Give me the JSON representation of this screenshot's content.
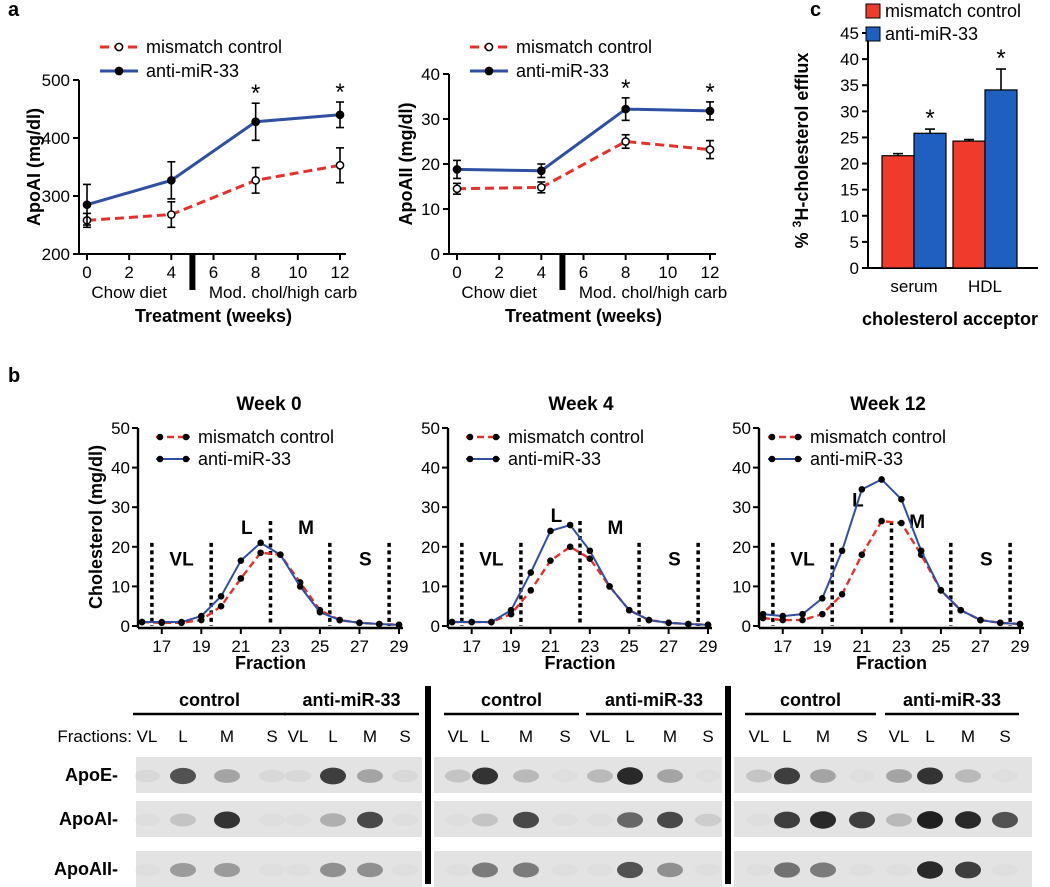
{
  "panel_labels": {
    "a": "a",
    "b": "b",
    "c": "c"
  },
  "colors": {
    "control": "#e8302a",
    "treated": "#2e4fa3",
    "bar_control": "#ef3b2c",
    "bar_treated": "#1f5fbf"
  },
  "chart_data": [
    {
      "id": "a-left",
      "type": "line",
      "ylabel": "ApoAI (mg/dl)",
      "xlabel": "Treatment (weeks)",
      "x": [
        0,
        4,
        8,
        12
      ],
      "xticks": [
        0,
        2,
        4,
        6,
        8,
        10,
        12
      ],
      "xlim": [
        0,
        12
      ],
      "ylim": [
        200,
        500
      ],
      "yticks": [
        200,
        300,
        400,
        500
      ],
      "diet_labels": [
        "Chow diet",
        "Mod. chol/high carb"
      ],
      "series": [
        {
          "name": "mismatch control",
          "style": "dashed-open",
          "values": [
            258,
            268,
            327,
            353
          ],
          "errors": [
            12,
            22,
            22,
            30
          ]
        },
        {
          "name": "anti-miR-33",
          "style": "solid-filled",
          "values": [
            285,
            327,
            428,
            440
          ],
          "errors": [
            35,
            32,
            32,
            22
          ]
        }
      ],
      "significance": [
        {
          "x": 8,
          "label": "*"
        },
        {
          "x": 12,
          "label": "*"
        }
      ]
    },
    {
      "id": "a-right",
      "type": "line",
      "ylabel": "ApoAII (mg/dl)",
      "xlabel": "Treatment (weeks)",
      "x": [
        0,
        4,
        8,
        12
      ],
      "xticks": [
        0,
        2,
        4,
        6,
        8,
        10,
        12
      ],
      "xlim": [
        0,
        12
      ],
      "ylim": [
        0,
        40
      ],
      "yticks": [
        0,
        10,
        20,
        30,
        40
      ],
      "diet_labels": [
        "Chow diet",
        "Mod. chol/high carb"
      ],
      "series": [
        {
          "name": "mismatch control",
          "style": "dashed-open",
          "values": [
            14.5,
            14.8,
            25,
            23.2
          ],
          "errors": [
            1.2,
            1.2,
            1.5,
            2
          ]
        },
        {
          "name": "anti-miR-33",
          "style": "solid-filled",
          "values": [
            18.8,
            18.5,
            32.2,
            31.8
          ],
          "errors": [
            2,
            1.5,
            2.5,
            2
          ]
        }
      ],
      "significance": [
        {
          "x": 8,
          "label": "*"
        },
        {
          "x": 12,
          "label": "*"
        }
      ]
    },
    {
      "id": "c",
      "type": "bar",
      "ylabel": "% 3H-cholesterol efflux",
      "ylabel_sup": "3",
      "ylabel_pre": "% ",
      "ylabel_post": "H-cholesterol efflux",
      "xlabel": "cholesterol acceptor",
      "categories": [
        "serum",
        "HDL"
      ],
      "ylim": [
        0,
        45
      ],
      "yticks": [
        0,
        5,
        10,
        15,
        20,
        25,
        30,
        35,
        40,
        45
      ],
      "series": [
        {
          "name": "mismatch control",
          "values": [
            21.5,
            24.3
          ],
          "errors": [
            0.4,
            0.3
          ]
        },
        {
          "name": "anti-miR-33",
          "values": [
            25.8,
            34.1
          ],
          "errors": [
            0.8,
            4
          ]
        }
      ],
      "significance": [
        {
          "category": "serum",
          "label": "*"
        },
        {
          "category": "HDL",
          "label": "*"
        }
      ]
    },
    {
      "id": "b-week0",
      "type": "line",
      "title": "Week 0",
      "ylabel": "Cholesterol (mg/dl)",
      "xlabel": "Fraction",
      "xlim": [
        16,
        29
      ],
      "xticks": [
        17,
        19,
        21,
        23,
        25,
        27,
        29
      ],
      "ylim": [
        0,
        50
      ],
      "yticks": [
        0,
        10,
        20,
        30,
        40,
        50
      ],
      "x": [
        16,
        17,
        18,
        19,
        20,
        21,
        22,
        23,
        24,
        25,
        26,
        27,
        28,
        29
      ],
      "series": [
        {
          "name": "mismatch control",
          "values": [
            1,
            0.8,
            0.8,
            1.5,
            5,
            12,
            18.5,
            18,
            11,
            4,
            1.5,
            0.8,
            0.5,
            0.3
          ]
        },
        {
          "name": "anti-miR-33",
          "values": [
            1,
            1,
            1,
            2.5,
            7.5,
            16.5,
            21,
            18,
            10,
            3.5,
            1.5,
            0.8,
            0.5,
            0.3
          ]
        }
      ],
      "regions": [
        {
          "label": "VL",
          "label_x": 18,
          "label_y": 17
        },
        {
          "label": "L",
          "label_x": 21.3,
          "label_y": 25
        },
        {
          "label": "M",
          "label_x": 24.3,
          "label_y": 25
        },
        {
          "label": "S",
          "label_x": 27.3,
          "label_y": 17
        }
      ],
      "region_boundaries": [
        16.5,
        19.5,
        22.5,
        25.5,
        28.5
      ]
    },
    {
      "id": "b-week4",
      "type": "line",
      "title": "Week 4",
      "ylabel": "",
      "xlabel": "Fraction",
      "xlim": [
        16,
        29
      ],
      "xticks": [
        17,
        19,
        21,
        23,
        25,
        27,
        29
      ],
      "ylim": [
        0,
        50
      ],
      "yticks": [
        0,
        10,
        20,
        30,
        40,
        50
      ],
      "x": [
        16,
        17,
        18,
        19,
        20,
        21,
        22,
        23,
        24,
        25,
        26,
        27,
        28,
        29
      ],
      "series": [
        {
          "name": "mismatch control",
          "values": [
            1,
            1,
            1,
            3,
            9,
            16.5,
            20,
            17,
            10,
            4,
            1.5,
            0.8,
            0.5,
            0.3
          ]
        },
        {
          "name": "anti-miR-33",
          "values": [
            1,
            1,
            1,
            4,
            13.5,
            24,
            25.5,
            19,
            10,
            4,
            1.5,
            0.8,
            0.5,
            0.3
          ]
        }
      ],
      "regions": [
        {
          "label": "VL",
          "label_x": 18,
          "label_y": 17
        },
        {
          "label": "L",
          "label_x": 21.3,
          "label_y": 28
        },
        {
          "label": "M",
          "label_x": 24.3,
          "label_y": 25
        },
        {
          "label": "S",
          "label_x": 27.3,
          "label_y": 17
        }
      ],
      "region_boundaries": [
        16.5,
        19.5,
        22.5,
        25.5,
        28.5
      ]
    },
    {
      "id": "b-week12",
      "type": "line",
      "title": "Week 12",
      "ylabel": "",
      "xlabel": "Fraction",
      "xlim": [
        16,
        29
      ],
      "xticks": [
        17,
        19,
        21,
        23,
        25,
        27,
        29
      ],
      "ylim": [
        0,
        50
      ],
      "yticks": [
        0,
        10,
        20,
        30,
        40,
        50
      ],
      "x": [
        16,
        17,
        18,
        19,
        20,
        21,
        22,
        23,
        24,
        25,
        26,
        27,
        28,
        29
      ],
      "series": [
        {
          "name": "mismatch control",
          "values": [
            2,
            1.5,
            1.5,
            3,
            8,
            18,
            26.5,
            26,
            18,
            9,
            4,
            1.5,
            0.8,
            0.5
          ]
        },
        {
          "name": "anti-miR-33",
          "values": [
            3,
            2.5,
            3,
            7,
            19,
            34.5,
            37,
            32,
            19,
            9,
            4,
            1.5,
            0.8,
            0.5
          ]
        }
      ],
      "regions": [
        {
          "label": "VL",
          "label_x": 18,
          "label_y": 17
        },
        {
          "label": "L",
          "label_x": 20.8,
          "label_y": 32
        },
        {
          "label": "M",
          "label_x": 23.8,
          "label_y": 26.5
        },
        {
          "label": "S",
          "label_x": 27.3,
          "label_y": 17
        }
      ],
      "region_boundaries": [
        16.5,
        19.5,
        22.5,
        25.5,
        28.5
      ]
    }
  ],
  "legend": {
    "control": "mismatch control",
    "treated": "anti-miR-33"
  },
  "blot": {
    "fractions_label": "Fractions:",
    "group_labels": [
      "control",
      "anti-miR-33",
      "control",
      "anti-miR-33",
      "control",
      "anti-miR-33"
    ],
    "lane_labels": [
      "VL",
      "L",
      "M",
      "S",
      "VL",
      "L",
      "M",
      "S",
      "VL",
      "L",
      "M",
      "S",
      "VL",
      "L",
      "M",
      "S",
      "VL",
      "L",
      "M",
      "S",
      "VL",
      "L",
      "M",
      "S"
    ],
    "row_labels": [
      "ApoE-",
      "ApoAI-",
      "ApoAII-"
    ],
    "intensities": [
      [
        0.05,
        0.7,
        0.3,
        0.05,
        0.05,
        0.8,
        0.3,
        0.05,
        0.15,
        0.85,
        0.2,
        0.02,
        0.2,
        0.9,
        0.3,
        0.02,
        0.15,
        0.8,
        0.3,
        0.02,
        0.3,
        0.85,
        0.2,
        0.02
      ],
      [
        0.02,
        0.15,
        0.85,
        0.02,
        0.02,
        0.25,
        0.75,
        0.02,
        0.02,
        0.15,
        0.75,
        0.02,
        0.02,
        0.6,
        0.75,
        0.1,
        0.02,
        0.8,
        0.9,
        0.8,
        0.2,
        0.95,
        0.9,
        0.7
      ],
      [
        0.02,
        0.35,
        0.35,
        0.02,
        0.02,
        0.4,
        0.4,
        0.02,
        0.02,
        0.5,
        0.5,
        0.02,
        0.02,
        0.7,
        0.4,
        0.02,
        0.02,
        0.55,
        0.5,
        0.02,
        0.02,
        0.9,
        0.8,
        0.02
      ]
    ]
  }
}
